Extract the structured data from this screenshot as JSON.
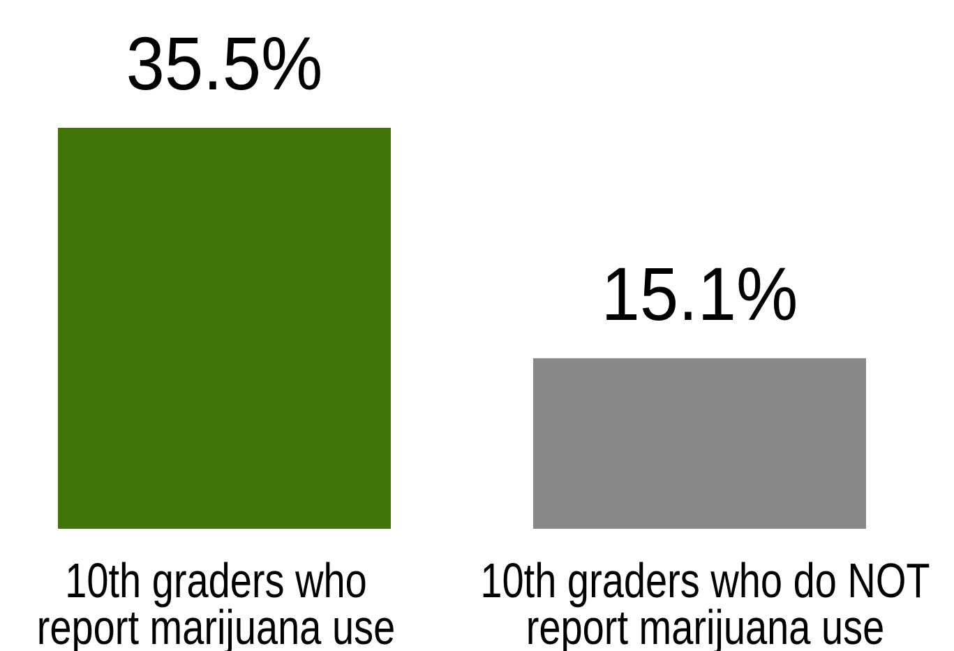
{
  "chart_data": {
    "type": "bar",
    "categories": [
      [
        "10th graders who",
        "report marijuana use"
      ],
      [
        "10th graders who do NOT",
        "report marijuana use"
      ]
    ],
    "values": [
      35.5,
      15.1
    ],
    "value_labels": [
      "35.5%",
      "15.1%"
    ],
    "colors": [
      "#427507",
      "#888888"
    ]
  }
}
